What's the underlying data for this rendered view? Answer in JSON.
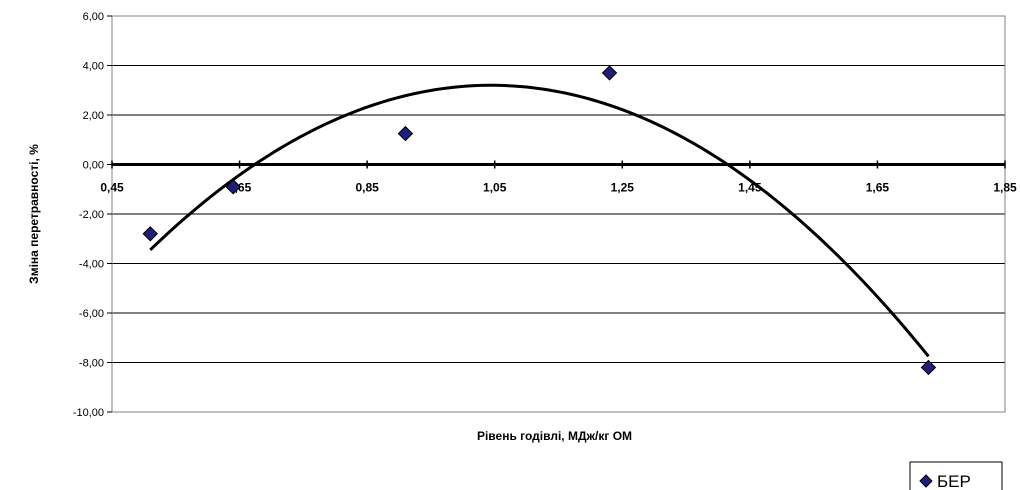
{
  "chart_data": {
    "type": "scatter",
    "title": "",
    "xlabel": "Рівень годівлі, МДж/кг ОМ",
    "ylabel": "Зміна перетравності, %",
    "xlim": [
      0.45,
      1.85
    ],
    "ylim": [
      -10,
      6
    ],
    "x_ticks": [
      "0,45",
      "0,65",
      "0,85",
      "1,05",
      "1,25",
      "1,45",
      "1,65",
      "1,85"
    ],
    "y_ticks": [
      "6,00",
      "4,00",
      "2,00",
      "0,00",
      "-2,00",
      "-4,00",
      "-6,00",
      "-8,00",
      "-10,00"
    ],
    "grid": "horizontal",
    "legend_position": "bottom-right",
    "series": [
      {
        "name": "БЕР",
        "marker": "diamond",
        "color": "#1f1f7a",
        "points": [
          {
            "x": 0.51,
            "y": -2.8
          },
          {
            "x": 0.64,
            "y": -0.9
          },
          {
            "x": 0.91,
            "y": 1.25
          },
          {
            "x": 1.23,
            "y": 3.7
          },
          {
            "x": 1.73,
            "y": -8.2
          }
        ]
      }
    ],
    "trendline": {
      "type": "polynomial-2",
      "color": "#000000",
      "x_range": [
        0.51,
        1.73
      ],
      "points": [
        {
          "x": 0.51,
          "y": -3.45
        },
        {
          "x": 1.04,
          "y": 3.2
        },
        {
          "x": 1.73,
          "y": -7.75
        }
      ]
    }
  }
}
